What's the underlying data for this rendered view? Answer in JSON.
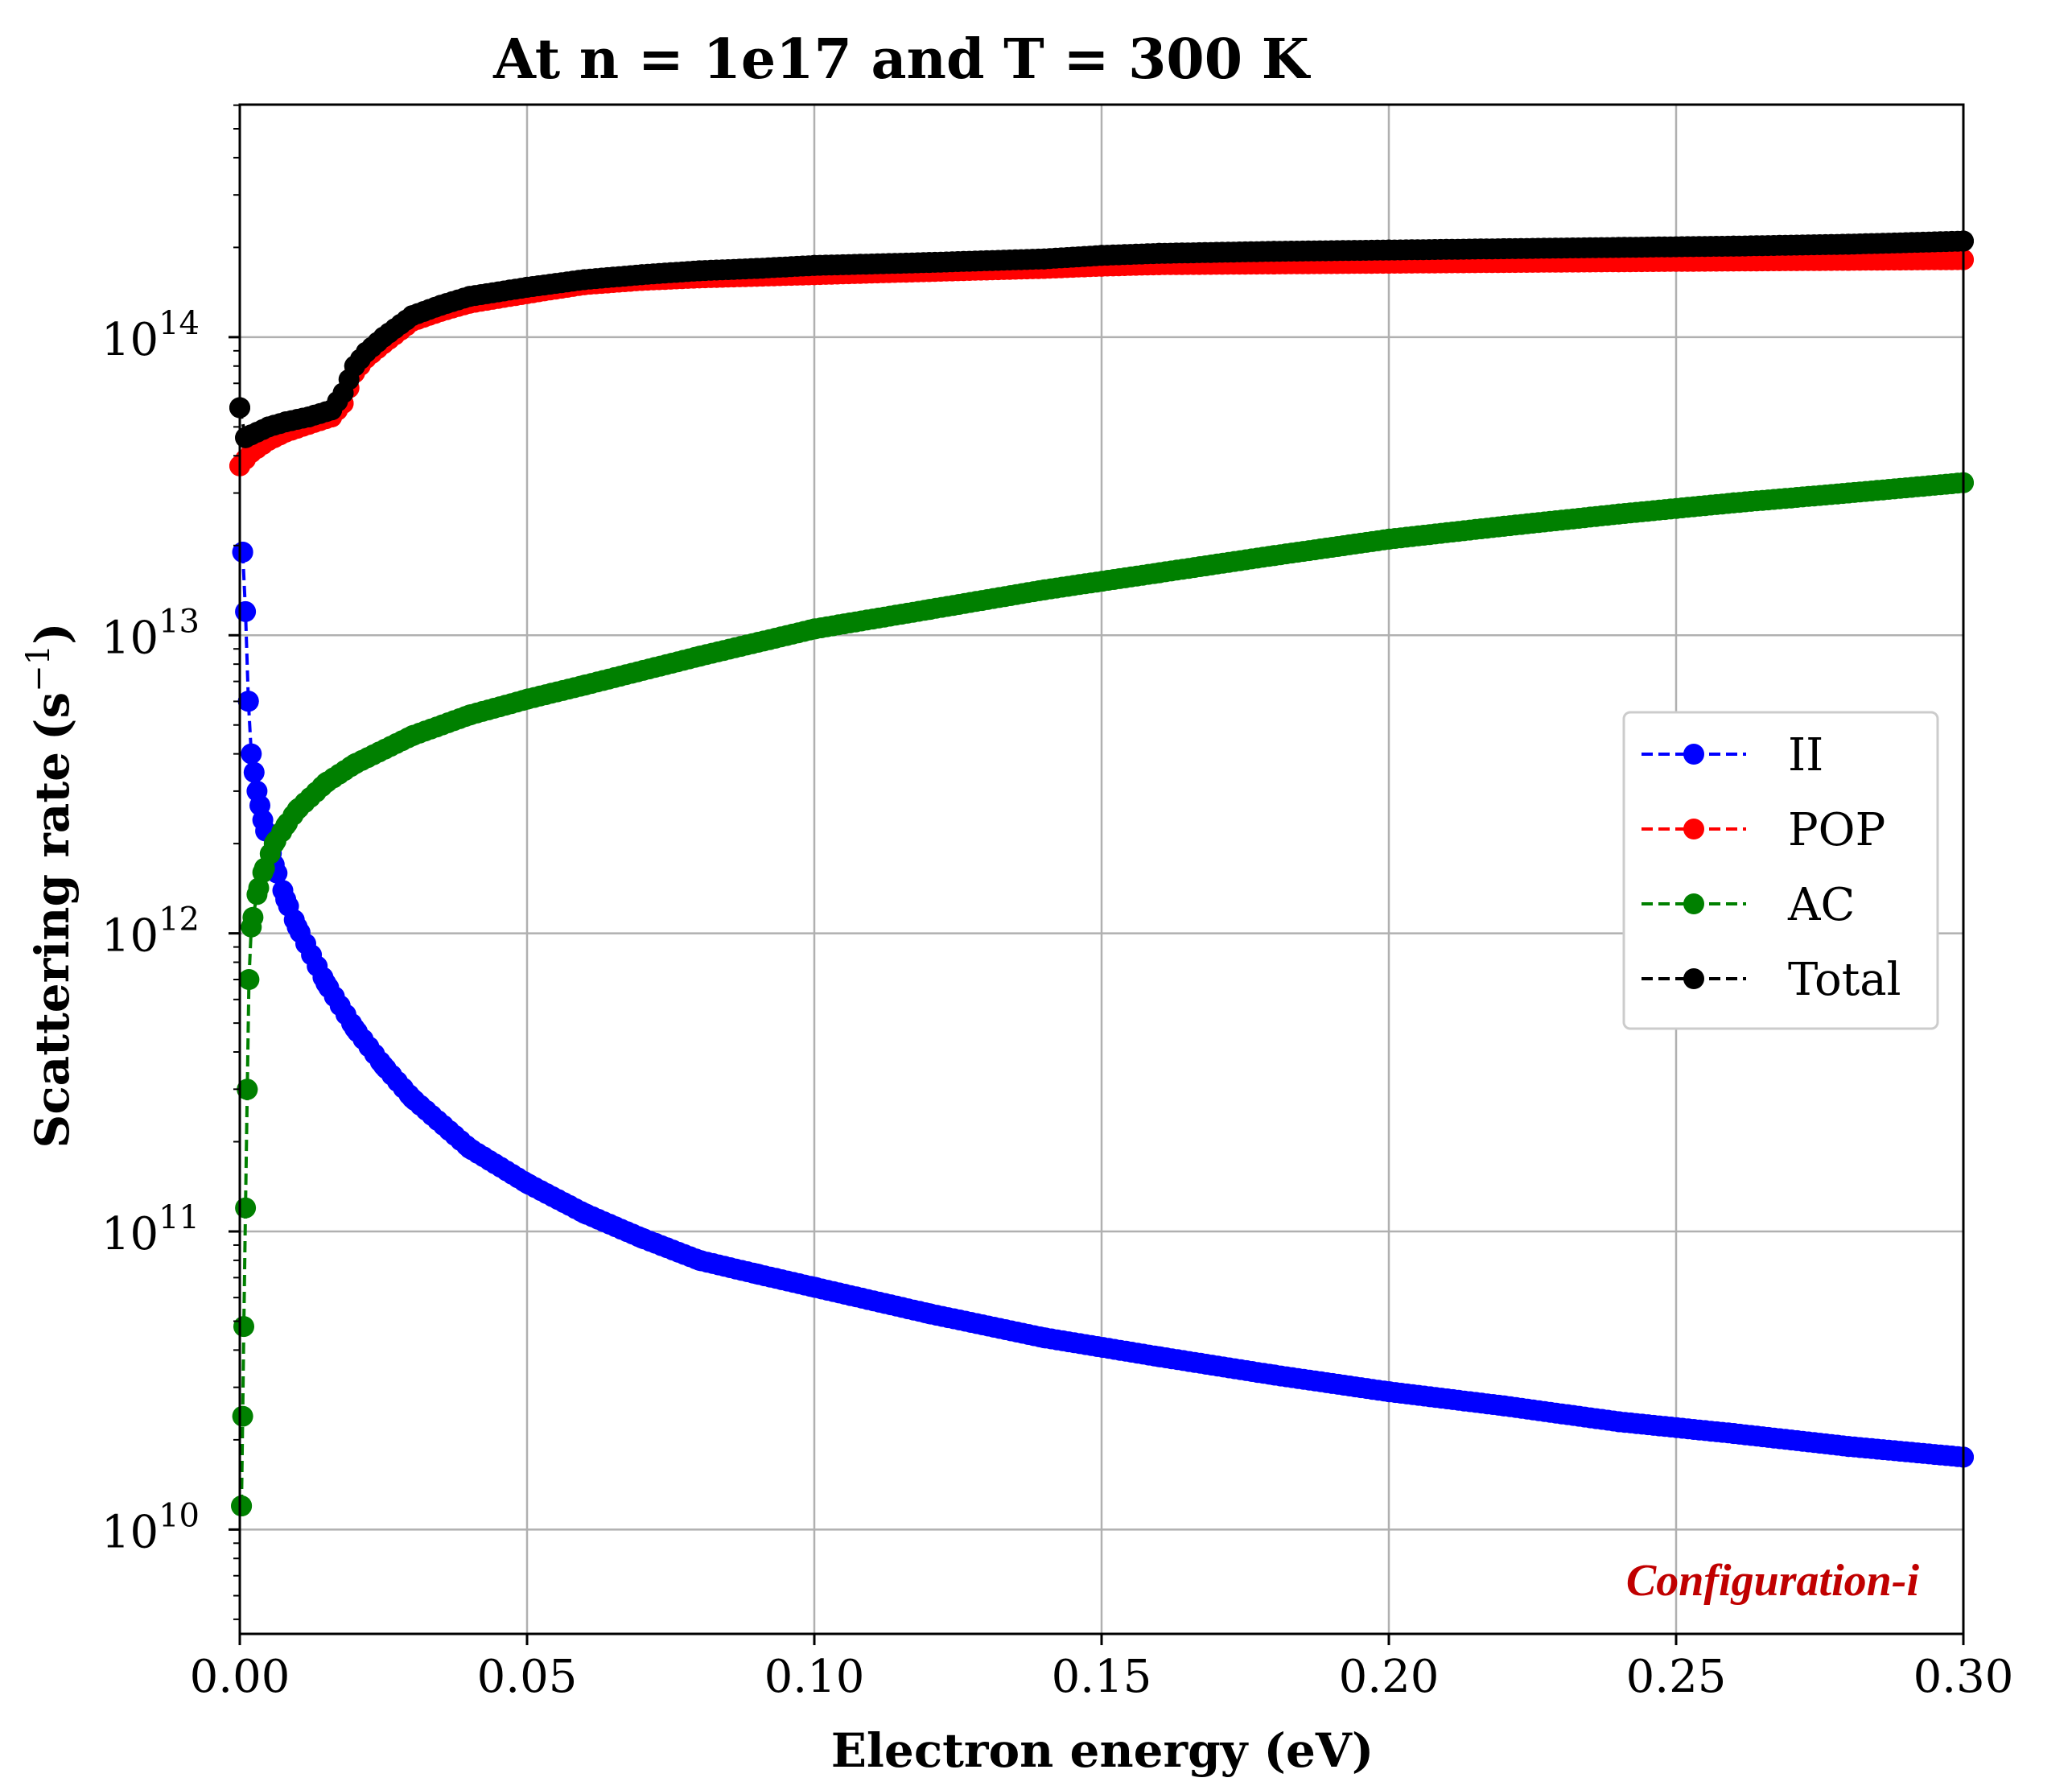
{
  "chart_data": {
    "type": "scatter",
    "title": "At n = 1e17 and T = 300 K",
    "xlabel": "Electron energy (eV)",
    "ylabel": "Scattering rate",
    "ylabel_unit": "(s",
    "ylabel_exp": "−1",
    "ylabel_close": ")",
    "xlim": [
      0.0,
      0.3
    ],
    "ylim_log10": [
      9.65,
      14.78
    ],
    "yscale": "log",
    "grid": true,
    "x_ticks": [
      {
        "value": 0.0,
        "label": "0.00"
      },
      {
        "value": 0.05,
        "label": "0.05"
      },
      {
        "value": 0.1,
        "label": "0.10"
      },
      {
        "value": 0.15,
        "label": "0.15"
      },
      {
        "value": 0.2,
        "label": "0.20"
      },
      {
        "value": 0.25,
        "label": "0.25"
      },
      {
        "value": 0.3,
        "label": "0.30"
      }
    ],
    "y_ticks": [
      {
        "exp": 10,
        "base": "10",
        "sup": "10"
      },
      {
        "exp": 11,
        "base": "10",
        "sup": "11"
      },
      {
        "exp": 12,
        "base": "10",
        "sup": "12"
      },
      {
        "exp": 13,
        "base": "10",
        "sup": "13"
      },
      {
        "exp": 14,
        "base": "10",
        "sup": "14"
      }
    ],
    "legend_position": "center-right",
    "series": [
      {
        "name": "II",
        "color": "#0000ff",
        "points": [
          [
            0.0005,
            19000000000000.0
          ],
          [
            0.001,
            12000000000000.0
          ],
          [
            0.0015,
            6000000000000.0
          ],
          [
            0.002,
            4000000000000.0
          ],
          [
            0.003,
            3000000000000.0
          ],
          [
            0.004,
            2400000000000.0
          ],
          [
            0.006,
            1700000000000.0
          ],
          [
            0.008,
            1300000000000.0
          ],
          [
            0.01,
            1050000000000.0
          ],
          [
            0.015,
            680000000000.0
          ],
          [
            0.02,
            480000000000.0
          ],
          [
            0.025,
            360000000000.0
          ],
          [
            0.03,
            280000000000.0
          ],
          [
            0.04,
            190000000000.0
          ],
          [
            0.05,
            145000000000.0
          ],
          [
            0.06,
            115000000000.0
          ],
          [
            0.07,
            95000000000.0
          ],
          [
            0.08,
            80000000000.0
          ],
          [
            0.09,
            72000000000.0
          ],
          [
            0.1,
            65000000000.0
          ],
          [
            0.12,
            53000000000.0
          ],
          [
            0.14,
            44000000000.0
          ],
          [
            0.16,
            38000000000.0
          ],
          [
            0.18,
            33000000000.0
          ],
          [
            0.2,
            29000000000.0
          ],
          [
            0.22,
            26000000000.0
          ],
          [
            0.24,
            23000000000.0
          ],
          [
            0.26,
            21000000000.0
          ],
          [
            0.28,
            19000000000.0
          ],
          [
            0.3,
            17500000000.0
          ]
        ]
      },
      {
        "name": "POP",
        "color": "#ff0000",
        "points": [
          [
            0.0,
            37000000000000.0
          ],
          [
            0.002,
            41000000000000.0
          ],
          [
            0.005,
            45000000000000.0
          ],
          [
            0.008,
            48000000000000.0
          ],
          [
            0.012,
            51000000000000.0
          ],
          [
            0.016,
            54000000000000.0
          ],
          [
            0.018,
            60000000000000.0
          ],
          [
            0.02,
            76000000000000.0
          ],
          [
            0.022,
            85000000000000.0
          ],
          [
            0.025,
            95000000000000.0
          ],
          [
            0.03,
            113000000000000.0
          ],
          [
            0.035,
            122000000000000.0
          ],
          [
            0.04,
            130000000000000.0
          ],
          [
            0.05,
            140000000000000.0
          ],
          [
            0.06,
            150000000000000.0
          ],
          [
            0.07,
            155000000000000.0
          ],
          [
            0.08,
            158000000000000.0
          ],
          [
            0.09,
            160000000000000.0
          ],
          [
            0.1,
            162000000000000.0
          ],
          [
            0.12,
            166000000000000.0
          ],
          [
            0.14,
            170000000000000.0
          ],
          [
            0.15,
            173000000000000.0
          ],
          [
            0.16,
            175000000000000.0
          ],
          [
            0.18,
            176000000000000.0
          ],
          [
            0.2,
            177000000000000.0
          ],
          [
            0.22,
            178000000000000.0
          ],
          [
            0.24,
            179000000000000.0
          ],
          [
            0.26,
            180000000000000.0
          ],
          [
            0.28,
            181000000000000.0
          ],
          [
            0.3,
            182000000000000.0
          ]
        ]
      },
      {
        "name": "AC",
        "color": "#008000",
        "points": [
          [
            0.0003,
            12000000000.0
          ],
          [
            0.0005,
            24000000000.0
          ],
          [
            0.0007,
            48000000000.0
          ],
          [
            0.001,
            120000000000.0
          ],
          [
            0.0013,
            300000000000.0
          ],
          [
            0.0016,
            700000000000.0
          ],
          [
            0.002,
            1050000000000.0
          ],
          [
            0.003,
            1350000000000.0
          ],
          [
            0.004,
            1600000000000.0
          ],
          [
            0.006,
            2000000000000.0
          ],
          [
            0.008,
            2300000000000.0
          ],
          [
            0.01,
            2600000000000.0
          ],
          [
            0.015,
            3200000000000.0
          ],
          [
            0.02,
            3700000000000.0
          ],
          [
            0.03,
            4600000000000.0
          ],
          [
            0.04,
            5400000000000.0
          ],
          [
            0.05,
            6100000000000.0
          ],
          [
            0.06,
            6800000000000.0
          ],
          [
            0.08,
            8500000000000.0
          ],
          [
            0.1,
            10500000000000.0
          ],
          [
            0.12,
            12200000000000.0
          ],
          [
            0.14,
            14200000000000.0
          ],
          [
            0.16,
            16200000000000.0
          ],
          [
            0.18,
            18500000000000.0
          ],
          [
            0.2,
            21000000000000.0
          ],
          [
            0.22,
            23200000000000.0
          ],
          [
            0.24,
            25500000000000.0
          ],
          [
            0.26,
            27800000000000.0
          ],
          [
            0.28,
            30000000000000.0
          ],
          [
            0.3,
            32500000000000.0
          ]
        ]
      },
      {
        "name": "Total",
        "color": "#000000",
        "points": [
          [
            0.0,
            58000000000000.0
          ],
          [
            0.001,
            46000000000000.0
          ],
          [
            0.002,
            47000000000000.0
          ],
          [
            0.005,
            50000000000000.0
          ],
          [
            0.008,
            52000000000000.0
          ],
          [
            0.012,
            54000000000000.0
          ],
          [
            0.016,
            57000000000000.0
          ],
          [
            0.018,
            65000000000000.0
          ],
          [
            0.02,
            80000000000000.0
          ],
          [
            0.022,
            89000000000000.0
          ],
          [
            0.025,
            100000000000000.0
          ],
          [
            0.03,
            118000000000000.0
          ],
          [
            0.035,
            128000000000000.0
          ],
          [
            0.04,
            137000000000000.0
          ],
          [
            0.05,
            147000000000000.0
          ],
          [
            0.06,
            156000000000000.0
          ],
          [
            0.07,
            162000000000000.0
          ],
          [
            0.08,
            167000000000000.0
          ],
          [
            0.09,
            170000000000000.0
          ],
          [
            0.1,
            174000000000000.0
          ],
          [
            0.12,
            178000000000000.0
          ],
          [
            0.14,
            183000000000000.0
          ],
          [
            0.15,
            188000000000000.0
          ],
          [
            0.16,
            191000000000000.0
          ],
          [
            0.18,
            194000000000000.0
          ],
          [
            0.2,
            196000000000000.0
          ],
          [
            0.22,
            198000000000000.0
          ],
          [
            0.24,
            200000000000000.0
          ],
          [
            0.26,
            202000000000000.0
          ],
          [
            0.28,
            205000000000000.0
          ],
          [
            0.3,
            210000000000000.0
          ]
        ]
      }
    ],
    "annotation": "Configuration-i",
    "annotation_color": "#c00000"
  }
}
